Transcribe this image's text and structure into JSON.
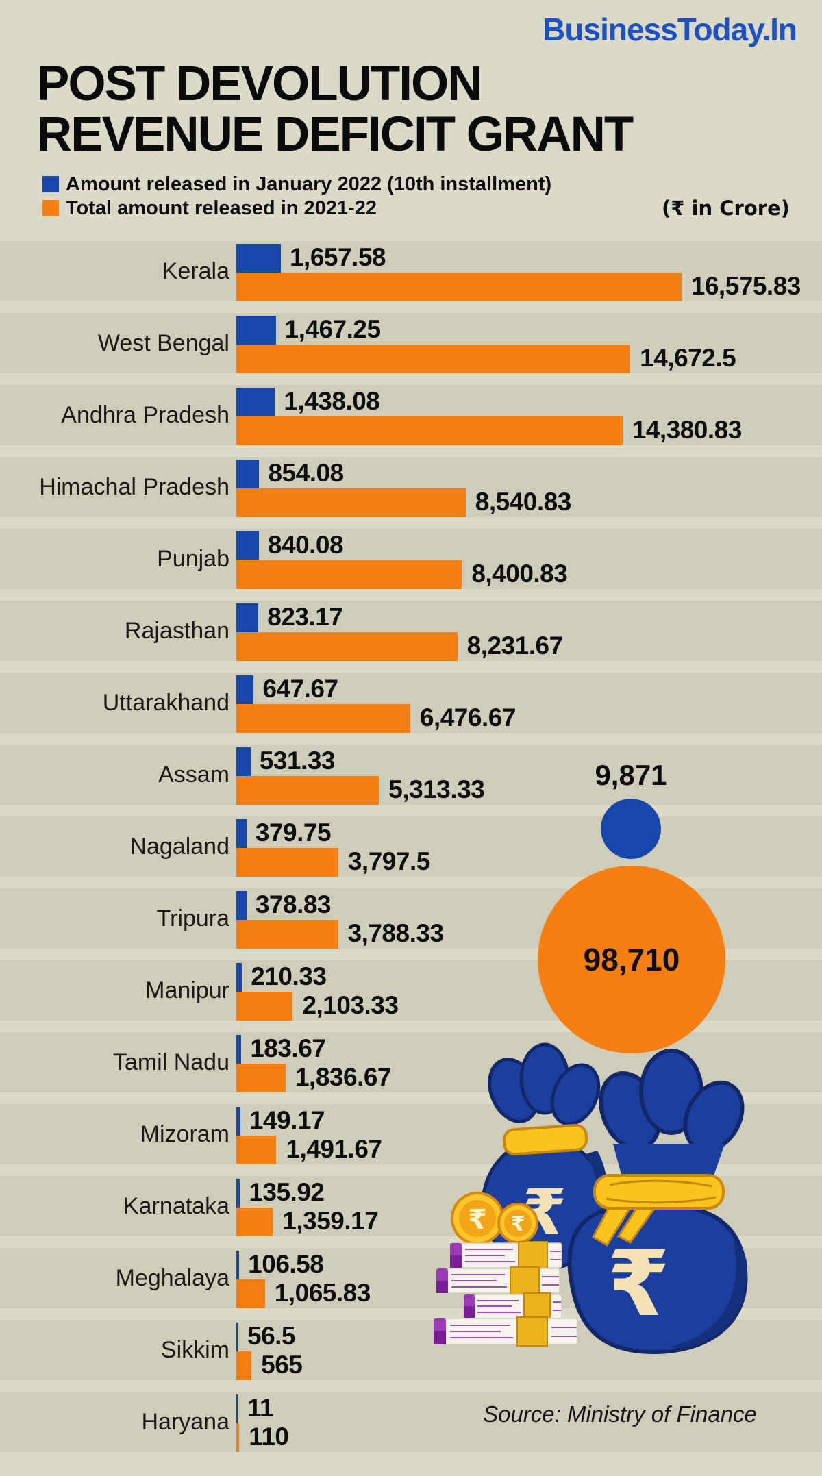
{
  "brand": {
    "logo": "BusinessToday.In"
  },
  "title": {
    "line1": "POST DEVOLUTION",
    "line2": "REVENUE DEFICIT GRANT"
  },
  "legend": {
    "item1": "Amount released in January 2022 (10th installment)",
    "item2": "Total amount released in 2021-22"
  },
  "unit_note": "(₹ in Crore)",
  "source": "Source: Ministry of Finance",
  "colors": {
    "background": "#dcd9c7",
    "row_stripe": "#cfccb8",
    "blue": "#1747a8",
    "orange": "#f57f12",
    "logo_blue": "#1b52c8"
  },
  "chart_data": {
    "type": "bar",
    "orientation": "horizontal",
    "unit": "₹ in Crore",
    "xlim": [
      0,
      17000
    ],
    "grid": false,
    "legend_position": "top-left",
    "categories": [
      "Kerala",
      "West Bengal",
      "Andhra Pradesh",
      "Himachal Pradesh",
      "Punjab",
      "Rajasthan",
      "Uttarakhand",
      "Assam",
      "Nagaland",
      "Tripura",
      "Manipur",
      "Tamil Nadu",
      "Mizoram",
      "Karnataka",
      "Meghalaya",
      "Sikkim",
      "Haryana"
    ],
    "series": [
      {
        "name": "Amount released in January 2022 (10th installment)",
        "color": "#1747a8",
        "values": [
          1657.58,
          1467.25,
          1438.08,
          854.08,
          840.08,
          823.17,
          647.67,
          531.33,
          379.75,
          378.83,
          210.33,
          183.67,
          149.17,
          135.92,
          106.58,
          56.5,
          11
        ],
        "labels": [
          "1,657.58",
          "1,467.25",
          "1,438.08",
          "854.08",
          "840.08",
          "823.17",
          "647.67",
          "531.33",
          "379.75",
          "378.83",
          "210.33",
          "183.67",
          "149.17",
          "135.92",
          "106.58",
          "56.5",
          "11"
        ]
      },
      {
        "name": "Total amount released in 2021-22",
        "color": "#f57f12",
        "values": [
          16575.83,
          14672.5,
          14380.83,
          8540.83,
          8400.83,
          8231.67,
          6476.67,
          5313.33,
          3797.5,
          3788.33,
          2103.33,
          1836.67,
          1491.67,
          1359.17,
          1065.83,
          565,
          110
        ],
        "labels": [
          "16,575.83",
          "14,672.5",
          "14,380.83",
          "8,540.83",
          "8,400.83",
          "8,231.67",
          "6,476.67",
          "5,313.33",
          "3,797.5",
          "3,788.33",
          "2,103.33",
          "1,836.67",
          "1,491.67",
          "1,359.17",
          "1,065.83",
          "565",
          "110"
        ]
      }
    ],
    "bubbles": [
      {
        "name": "total-january-2022-installment",
        "label": "9,871",
        "value": 9871,
        "color": "#1747a8"
      },
      {
        "name": "total-released-2021-22",
        "label": "98,710",
        "value": 98710,
        "color": "#f57f12"
      }
    ]
  }
}
